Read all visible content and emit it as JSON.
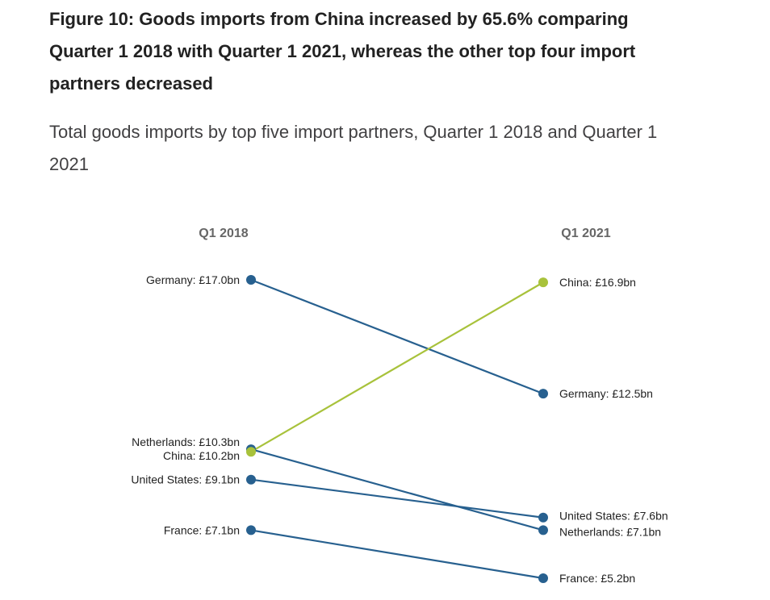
{
  "title": "Figure 10: Goods imports from China increased by 65.6% comparing Quarter 1 2018 with Quarter 1 2021, whereas the other top four import partners decreased",
  "subtitle": "Total goods imports by top five import partners, Quarter 1 2018 and Quarter 1 2021",
  "colors": {
    "china": "#a8c23b",
    "other": "#27608f"
  },
  "chart_data": {
    "type": "line",
    "subtype": "slope",
    "unit": "£bn",
    "x": [
      "Q1 2018",
      "Q1 2021"
    ],
    "ylim": [
      5.2,
      17.0
    ],
    "grid": false,
    "series": [
      {
        "name": "Germany",
        "values": [
          17.0,
          12.5
        ],
        "labels": [
          "Germany: £17.0bn",
          "Germany: £12.5bn"
        ],
        "color": "#27608f"
      },
      {
        "name": "Netherlands",
        "values": [
          10.3,
          7.1
        ],
        "labels": [
          "Netherlands: £10.3bn",
          "Netherlands: £7.1bn"
        ],
        "color": "#27608f"
      },
      {
        "name": "United States",
        "values": [
          9.1,
          7.6
        ],
        "labels": [
          "United States: £9.1bn",
          "United States: £7.6bn"
        ],
        "color": "#27608f"
      },
      {
        "name": "France",
        "values": [
          7.1,
          5.2
        ],
        "labels": [
          "France: £7.1bn",
          "France: £5.2bn"
        ],
        "color": "#27608f"
      },
      {
        "name": "China",
        "values": [
          10.2,
          16.9
        ],
        "labels": [
          "China: £10.2bn",
          "China: £16.9bn"
        ],
        "color": "#a8c23b"
      }
    ]
  }
}
